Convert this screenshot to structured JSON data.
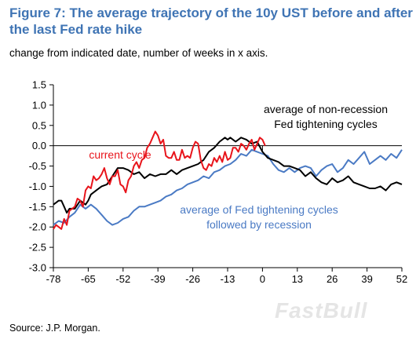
{
  "header": {
    "title": "Figure 7: The average trajectory of the 10y UST before and after the last Fed rate hike",
    "subtitle": "change from indicated date, number of weeks in x axis."
  },
  "footer": {
    "source": "Source: J.P. Morgan.",
    "watermark": "FastBull"
  },
  "colors": {
    "current": "#e8141b",
    "non_recession": "#000000",
    "recession": "#4a7ac4",
    "title": "#3f74b4"
  },
  "chart_data": {
    "type": "line",
    "title": "",
    "xlabel": "",
    "ylabel": "",
    "xlim": [
      -78,
      52
    ],
    "ylim": [
      -3.0,
      1.5
    ],
    "x_ticks": [
      -78,
      -65,
      -52,
      -39,
      -26,
      -13,
      0,
      13,
      26,
      39,
      52
    ],
    "y_ticks": [
      1.5,
      1.0,
      0.5,
      0.0,
      -0.5,
      -1.0,
      -1.5,
      -2.0,
      -2.5,
      -3.0
    ],
    "y_tick_labels": [
      "1.5",
      "1.0",
      "0.5",
      "0.0",
      "-0.5",
      "-1.0",
      "-1.5",
      "-2.0",
      "-2.5",
      "-3.0"
    ],
    "grid": false,
    "zero_line": true,
    "series": [
      {
        "name": "current cycle",
        "color": "#e8141b",
        "x": [
          -78,
          -77,
          -76,
          -75,
          -74,
          -73,
          -72,
          -71,
          -70,
          -69,
          -68,
          -67,
          -66,
          -65,
          -64,
          -63,
          -62,
          -61,
          -60,
          -59,
          -58,
          -57,
          -56,
          -55,
          -54,
          -53,
          -52,
          -51,
          -50,
          -49,
          -48,
          -47,
          -46,
          -45,
          -44,
          -43,
          -42,
          -41,
          -40,
          -39,
          -38,
          -37,
          -36,
          -35,
          -34,
          -33,
          -32,
          -31,
          -30,
          -29,
          -28,
          -27,
          -26,
          -25,
          -24,
          -23,
          -22,
          -21,
          -20,
          -19,
          -18,
          -17,
          -16,
          -15,
          -14,
          -13,
          -12,
          -11,
          -10,
          -9,
          -8,
          -7,
          -6,
          -5,
          -4,
          -3,
          -2,
          -1,
          0,
          1
        ],
        "values": [
          -2.05,
          -1.95,
          -2.0,
          -2.05,
          -1.8,
          -1.95,
          -1.6,
          -1.55,
          -1.5,
          -1.3,
          -1.35,
          -1.5,
          -1.1,
          -1.0,
          -1.05,
          -0.75,
          -0.85,
          -0.8,
          -0.7,
          -0.55,
          -0.8,
          -0.95,
          -0.75,
          -0.75,
          -0.6,
          -0.95,
          -1.0,
          -1.15,
          -0.85,
          -0.75,
          -0.5,
          -0.4,
          -0.55,
          -0.35,
          -0.3,
          -0.05,
          0.05,
          0.2,
          0.35,
          0.25,
          0.05,
          0.15,
          -0.25,
          -0.3,
          -0.3,
          -0.15,
          -0.35,
          -0.35,
          -0.1,
          -0.3,
          -0.25,
          -0.3,
          -0.05,
          0.1,
          0.05,
          -0.35,
          -0.55,
          -0.6,
          -0.45,
          -0.5,
          -0.3,
          -0.4,
          -0.25,
          -0.4,
          -0.15,
          -0.35,
          -0.3,
          -0.05,
          -0.05,
          -0.15,
          0.05,
          0.0,
          -0.1,
          0.05,
          0.15,
          -0.1,
          0.05,
          0.2,
          0.15,
          0.0
        ]
      },
      {
        "name": "average of non-recession Fed tightening cycles",
        "color": "#000000",
        "x": [
          -78,
          -77,
          -76,
          -75,
          -74,
          -73,
          -72,
          -70,
          -68,
          -66,
          -65,
          -64,
          -62,
          -60,
          -58,
          -56,
          -54,
          -52,
          -50,
          -48,
          -46,
          -44,
          -42,
          -40,
          -38,
          -36,
          -34,
          -32,
          -30,
          -28,
          -26,
          -24,
          -22,
          -20,
          -18,
          -16,
          -14,
          -13,
          -12,
          -10,
          -8,
          -6,
          -4,
          -2,
          0,
          2,
          4,
          6,
          8,
          10,
          12,
          14,
          16,
          18,
          20,
          22,
          24,
          26,
          28,
          30,
          32,
          34,
          36,
          38,
          40,
          42,
          44,
          46,
          48,
          50,
          52
        ],
        "values": [
          -1.45,
          -1.4,
          -1.35,
          -1.35,
          -1.5,
          -1.65,
          -1.55,
          -1.55,
          -1.35,
          -1.45,
          -1.35,
          -1.2,
          -1.1,
          -1.0,
          -0.95,
          -0.75,
          -0.55,
          -0.55,
          -0.6,
          -0.7,
          -0.65,
          -0.8,
          -0.7,
          -0.75,
          -0.7,
          -0.7,
          -0.6,
          -0.7,
          -0.6,
          -0.55,
          -0.5,
          -0.45,
          -0.35,
          -0.15,
          -0.05,
          0.1,
          0.2,
          0.15,
          0.2,
          0.1,
          0.2,
          0.15,
          0.05,
          0.1,
          -0.15,
          -0.3,
          -0.35,
          -0.4,
          -0.5,
          -0.5,
          -0.55,
          -0.6,
          -0.75,
          -0.65,
          -0.8,
          -0.9,
          -0.95,
          -0.8,
          -0.9,
          -0.85,
          -0.75,
          -0.9,
          -0.95,
          -1.0,
          -1.05,
          -1.05,
          -1.0,
          -1.1,
          -0.95,
          -0.9,
          -0.95
        ]
      },
      {
        "name": "average of Fed tightening cycles followed by recession",
        "color": "#4a7ac4",
        "x": [
          -78,
          -76,
          -74,
          -72,
          -70,
          -68,
          -66,
          -64,
          -62,
          -60,
          -58,
          -56,
          -54,
          -52,
          -50,
          -48,
          -46,
          -44,
          -42,
          -40,
          -38,
          -36,
          -34,
          -32,
          -30,
          -28,
          -26,
          -24,
          -22,
          -20,
          -18,
          -16,
          -14,
          -12,
          -10,
          -8,
          -6,
          -4,
          -2,
          0,
          2,
          4,
          6,
          8,
          10,
          12,
          14,
          16,
          18,
          20,
          22,
          24,
          26,
          28,
          30,
          32,
          34,
          36,
          38,
          40,
          42,
          44,
          46,
          48,
          50,
          52
        ],
        "values": [
          -1.95,
          -1.85,
          -1.9,
          -1.75,
          -1.65,
          -1.45,
          -1.55,
          -1.45,
          -1.55,
          -1.7,
          -1.85,
          -1.95,
          -1.9,
          -1.8,
          -1.75,
          -1.6,
          -1.5,
          -1.5,
          -1.45,
          -1.4,
          -1.35,
          -1.25,
          -1.2,
          -1.1,
          -1.05,
          -0.95,
          -0.9,
          -0.85,
          -0.75,
          -0.8,
          -0.65,
          -0.6,
          -0.5,
          -0.45,
          -0.35,
          -0.2,
          -0.25,
          -0.1,
          -0.15,
          -0.2,
          -0.25,
          -0.45,
          -0.6,
          -0.65,
          -0.55,
          -0.65,
          -0.55,
          -0.5,
          -0.55,
          -0.75,
          -0.6,
          -0.5,
          -0.45,
          -0.65,
          -0.55,
          -0.35,
          -0.45,
          -0.3,
          -0.15,
          -0.45,
          -0.35,
          -0.25,
          -0.35,
          -0.2,
          -0.3,
          -0.1
        ]
      }
    ],
    "annotations": [
      {
        "text": "current cycle",
        "color": "#e8141b"
      },
      {
        "text": "average of non-recession",
        "color": "#000000"
      },
      {
        "text": "Fed tightening cycles",
        "color": "#000000"
      },
      {
        "text": "average of Fed tightening cycles",
        "color": "#4a7ac4"
      },
      {
        "text": "followed by recession",
        "color": "#4a7ac4"
      }
    ]
  }
}
